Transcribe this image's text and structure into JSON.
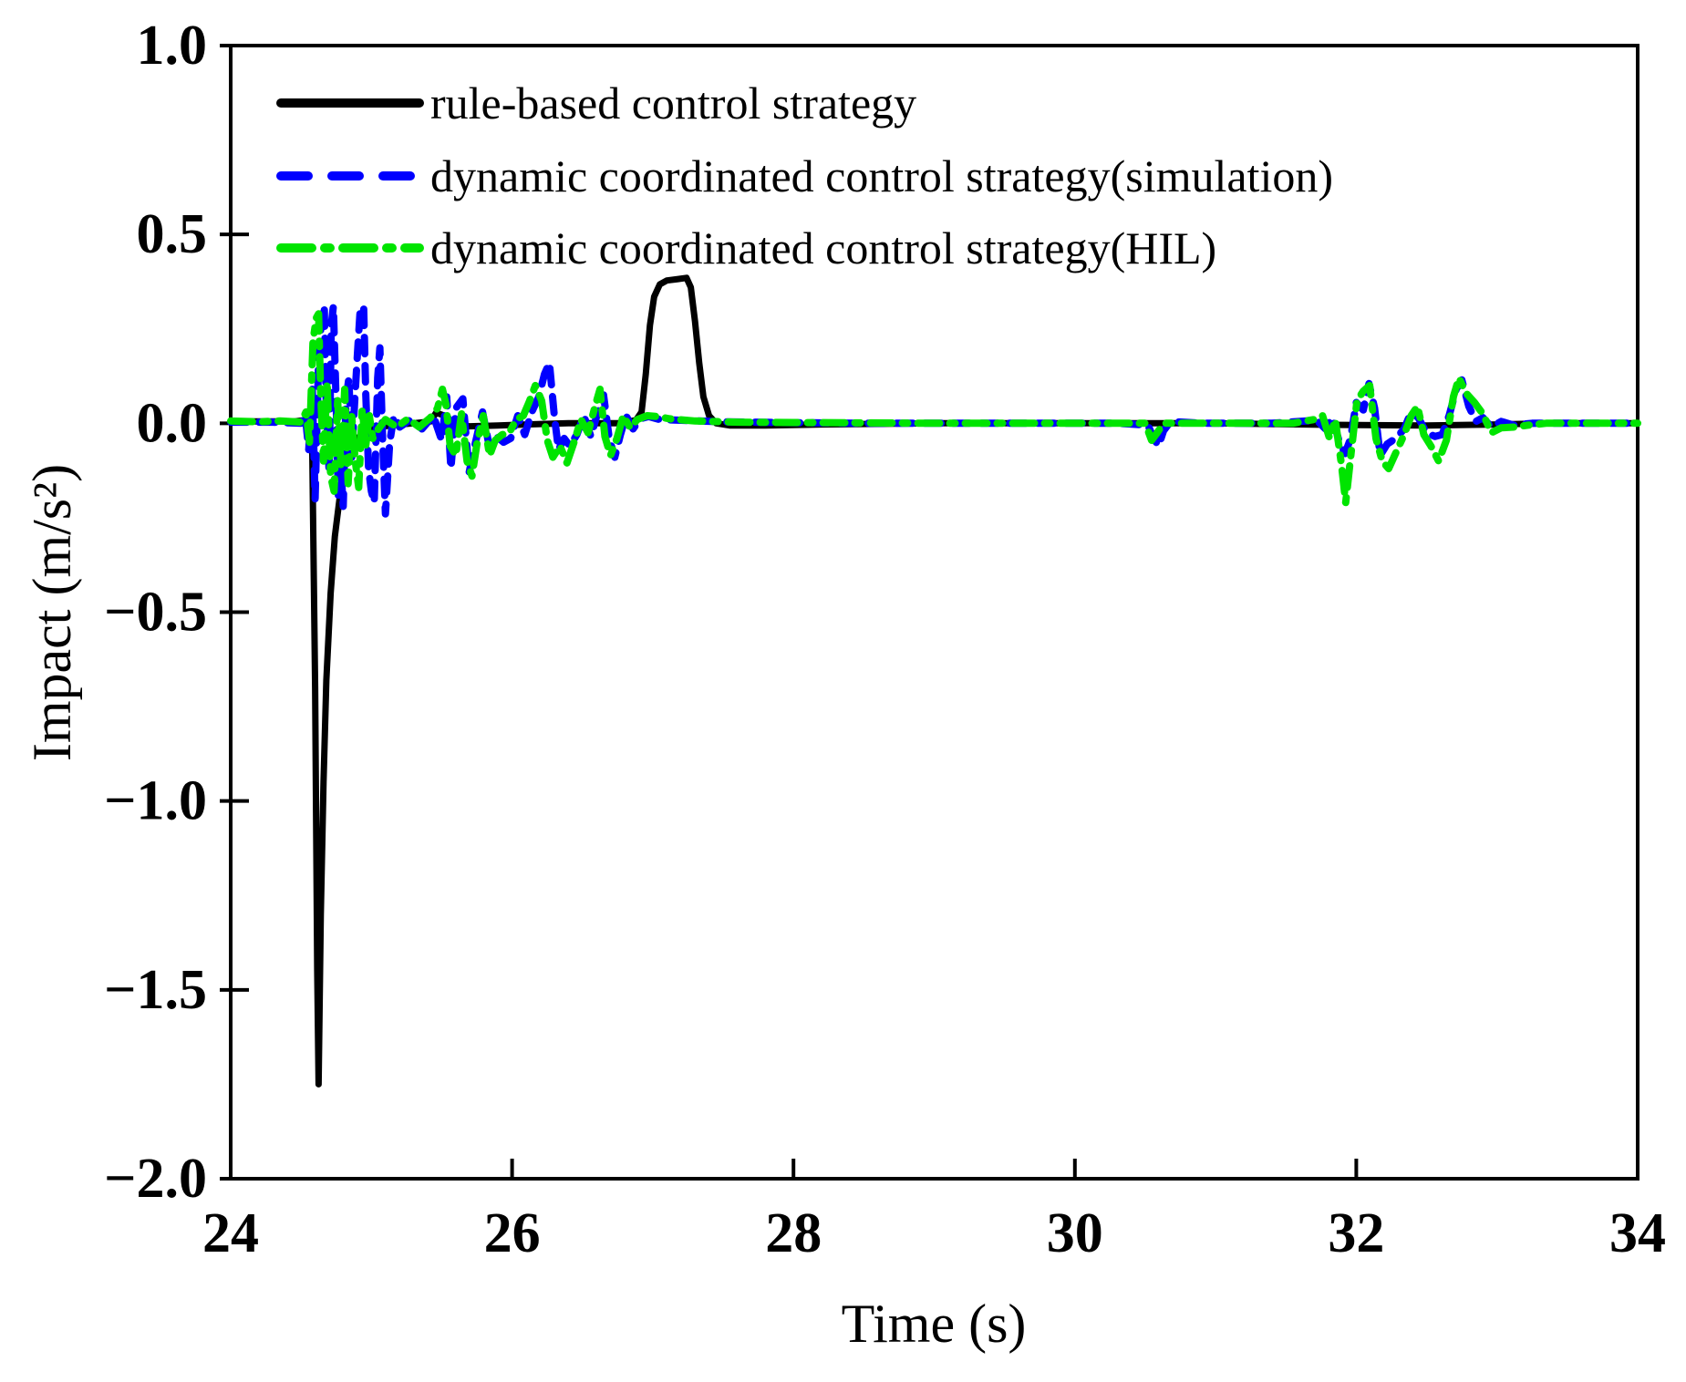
{
  "figure": {
    "background": "#ffffff"
  },
  "chart_data": {
    "type": "line",
    "title": "",
    "xlabel": "Time (s)",
    "ylabel": "Impact (m/s²)",
    "xlim": [
      24,
      34
    ],
    "ylim": [
      -2.0,
      1.0
    ],
    "grid": false,
    "legend_position": "upper-left-inside",
    "x_tick_labels": [
      "24",
      "26",
      "28",
      "30",
      "32",
      "34"
    ],
    "x_tick_values": [
      24,
      26,
      28,
      30,
      32,
      34
    ],
    "x_tick_marks": [
      26,
      28,
      30,
      32
    ],
    "y_tick_labels": [
      "1.0",
      "0.5",
      "0.0",
      "−0.5",
      "−1.0",
      "−1.5",
      "−2.0"
    ],
    "y_tick_values": [
      1.0,
      0.5,
      0.0,
      -0.5,
      -1.0,
      -1.5,
      -2.0
    ],
    "series": [
      {
        "name": "rule-based control strategy",
        "color": "#000000",
        "style": "solid",
        "width": 7,
        "dash": [],
        "legend_dash": [],
        "points": [
          [
            24,
            0.005
          ],
          [
            24.45,
            0.005
          ],
          [
            24.52,
            0.008
          ],
          [
            24.56,
            0
          ],
          [
            24.58,
            -0.08
          ],
          [
            24.6,
            -0.7
          ],
          [
            24.615,
            -1.45
          ],
          [
            24.625,
            -1.75
          ],
          [
            24.64,
            -1.3
          ],
          [
            24.66,
            -0.95
          ],
          [
            24.68,
            -0.68
          ],
          [
            24.71,
            -0.45
          ],
          [
            24.74,
            -0.3
          ],
          [
            24.78,
            -0.18
          ],
          [
            24.82,
            -0.09
          ],
          [
            24.88,
            -0.05
          ],
          [
            24.94,
            -0.025
          ],
          [
            25.02,
            -0.012
          ],
          [
            25.15,
            -0.005
          ],
          [
            25.3,
            0
          ],
          [
            25.42,
            0.005
          ],
          [
            25.46,
            0.028
          ],
          [
            25.52,
            0.02
          ],
          [
            25.56,
            -0.005
          ],
          [
            25.7,
            -0.008
          ],
          [
            25.9,
            -0.006
          ],
          [
            26.1,
            -0.003
          ],
          [
            26.4,
            0
          ],
          [
            26.75,
            0
          ],
          [
            26.88,
            0.008
          ],
          [
            26.92,
            0.03
          ],
          [
            26.95,
            0.13
          ],
          [
            26.98,
            0.26
          ],
          [
            27.01,
            0.335
          ],
          [
            27.05,
            0.368
          ],
          [
            27.1,
            0.378
          ],
          [
            27.18,
            0.382
          ],
          [
            27.24,
            0.385
          ],
          [
            27.27,
            0.36
          ],
          [
            27.3,
            0.27
          ],
          [
            27.33,
            0.16
          ],
          [
            27.36,
            0.07
          ],
          [
            27.4,
            0.02
          ],
          [
            27.45,
            0
          ],
          [
            27.55,
            -0.006
          ],
          [
            27.8,
            -0.006
          ],
          [
            28.2,
            -0.003
          ],
          [
            29,
            0
          ],
          [
            30,
            0
          ],
          [
            31,
            0
          ],
          [
            31.8,
            -0.004
          ],
          [
            32.5,
            -0.006
          ],
          [
            33,
            -0.003
          ],
          [
            33.4,
            0
          ],
          [
            34,
            0
          ]
        ]
      },
      {
        "name": "dynamic coordinated control strategy(simulation)",
        "color": "#0000FF",
        "style": "dashed",
        "width": 8,
        "dash": [
          18,
          13
        ],
        "legend_dash": [
          30,
          26
        ],
        "points": [
          [
            24,
            0.003
          ],
          [
            24.3,
            0.003
          ],
          [
            24.5,
            0
          ],
          [
            24.53,
            0.02
          ],
          [
            24.555,
            -0.07
          ],
          [
            24.58,
            0.09
          ],
          [
            24.6,
            -0.2
          ],
          [
            24.625,
            0.17
          ],
          [
            24.65,
            0.3
          ],
          [
            24.665,
            0.31
          ],
          [
            24.68,
            0.04
          ],
          [
            24.7,
            -0.13
          ],
          [
            24.715,
            0.26
          ],
          [
            24.73,
            0.31
          ],
          [
            24.75,
            0.05
          ],
          [
            24.765,
            -0.19
          ],
          [
            24.78,
            -0.1
          ],
          [
            24.8,
            -0.22
          ],
          [
            24.82,
            0.06
          ],
          [
            24.84,
            0.12
          ],
          [
            24.86,
            -0.09
          ],
          [
            24.88,
            0.05
          ],
          [
            24.9,
            0.18
          ],
          [
            24.92,
            0.3
          ],
          [
            24.945,
            0.31
          ],
          [
            24.96,
            0.08
          ],
          [
            24.98,
            -0.12
          ],
          [
            25,
            -0.18
          ],
          [
            25.02,
            -0.21
          ],
          [
            25.045,
            0.12
          ],
          [
            25.06,
            0.2
          ],
          [
            25.08,
            -0.04
          ],
          [
            25.1,
            -0.24
          ],
          [
            25.13,
            -0.05
          ],
          [
            25.16,
            0.02
          ],
          [
            25.2,
            -0.01
          ],
          [
            25.28,
            0.01
          ],
          [
            25.36,
            -0.015
          ],
          [
            25.44,
            0.02
          ],
          [
            25.5,
            -0.045
          ],
          [
            25.535,
            0.07
          ],
          [
            25.565,
            -0.12
          ],
          [
            25.6,
            0.04
          ],
          [
            25.65,
            0.065
          ],
          [
            25.695,
            -0.13
          ],
          [
            25.74,
            -0.05
          ],
          [
            25.79,
            0.03
          ],
          [
            25.84,
            -0.065
          ],
          [
            25.89,
            -0.035
          ],
          [
            25.94,
            -0.05
          ],
          [
            25.99,
            -0.04
          ],
          [
            26.04,
            0.02
          ],
          [
            26.09,
            -0.03
          ],
          [
            26.14,
            0.03
          ],
          [
            26.19,
            0.07
          ],
          [
            26.23,
            0.13
          ],
          [
            26.265,
            0.16
          ],
          [
            26.3,
            0.02
          ],
          [
            26.33,
            -0.07
          ],
          [
            26.37,
            -0.04
          ],
          [
            26.41,
            -0.06
          ],
          [
            26.46,
            -0.03
          ],
          [
            26.51,
            0.02
          ],
          [
            26.56,
            -0.035
          ],
          [
            26.61,
            0.03
          ],
          [
            26.65,
            0.075
          ],
          [
            26.69,
            -0.04
          ],
          [
            26.73,
            -0.09
          ],
          [
            26.77,
            -0.03
          ],
          [
            26.81,
            0.02
          ],
          [
            26.86,
            -0.015
          ],
          [
            26.91,
            0.012
          ],
          [
            26.97,
            0.018
          ],
          [
            27.05,
            0.01
          ],
          [
            27.2,
            0.008
          ],
          [
            27.5,
            0.004
          ],
          [
            27.9,
            0.002
          ],
          [
            28.5,
            0
          ],
          [
            29.5,
            0
          ],
          [
            30.3,
            0
          ],
          [
            30.52,
            -0.005
          ],
          [
            30.56,
            -0.04
          ],
          [
            30.595,
            -0.06
          ],
          [
            30.63,
            -0.02
          ],
          [
            30.68,
            0.005
          ],
          [
            30.9,
            0
          ],
          [
            31.4,
            0
          ],
          [
            31.72,
            0.008
          ],
          [
            31.78,
            -0.015
          ],
          [
            31.83,
            0.015
          ],
          [
            31.88,
            -0.05
          ],
          [
            31.92,
            -0.08
          ],
          [
            31.96,
            -0.04
          ],
          [
            32,
            0.055
          ],
          [
            32.05,
            0.035
          ],
          [
            32.09,
            0.105
          ],
          [
            32.13,
            0.04
          ],
          [
            32.17,
            -0.085
          ],
          [
            32.22,
            -0.055
          ],
          [
            32.28,
            -0.04
          ],
          [
            32.34,
            -0.015
          ],
          [
            32.39,
            0.03
          ],
          [
            32.44,
            0.015
          ],
          [
            32.5,
            -0.025
          ],
          [
            32.56,
            -0.035
          ],
          [
            32.61,
            -0.03
          ],
          [
            32.66,
            0.02
          ],
          [
            32.71,
            0.09
          ],
          [
            32.75,
            0.115
          ],
          [
            32.8,
            0.045
          ],
          [
            32.85,
            0.005
          ],
          [
            32.9,
            0.015
          ],
          [
            32.96,
            -0.01
          ],
          [
            33.03,
            0.005
          ],
          [
            33.12,
            -0.005
          ],
          [
            33.25,
            0
          ],
          [
            34,
            0
          ]
        ]
      },
      {
        "name": "dynamic coordinated control strategy(HIL)",
        "color": "#00E400",
        "style": "dashdot",
        "width": 8,
        "dash": [
          24,
          11,
          6,
          11
        ],
        "legend_dash": [
          34,
          14,
          6,
          14
        ],
        "points": [
          [
            24,
            0.006
          ],
          [
            24.2,
            0.004
          ],
          [
            24.35,
            0.006
          ],
          [
            24.5,
            0.003
          ],
          [
            24.535,
            0.03
          ],
          [
            24.56,
            -0.05
          ],
          [
            24.585,
            0.22
          ],
          [
            24.61,
            0.28
          ],
          [
            24.625,
            0.29
          ],
          [
            24.64,
            0.07
          ],
          [
            24.66,
            -0.1
          ],
          [
            24.685,
            0.11
          ],
          [
            24.71,
            -0.14
          ],
          [
            24.735,
            -0.18
          ],
          [
            24.76,
            0.06
          ],
          [
            24.785,
            -0.12
          ],
          [
            24.81,
            0.09
          ],
          [
            24.835,
            -0.16
          ],
          [
            24.86,
            0.02
          ],
          [
            24.885,
            -0.1
          ],
          [
            24.91,
            -0.17
          ],
          [
            24.935,
            0.04
          ],
          [
            24.96,
            -0.06
          ],
          [
            24.985,
            0.02
          ],
          [
            25.01,
            -0.04
          ],
          [
            25.05,
            -0.015
          ],
          [
            25.1,
            0.01
          ],
          [
            25.18,
            -0.01
          ],
          [
            25.26,
            0.012
          ],
          [
            25.34,
            -0.01
          ],
          [
            25.42,
            0.015
          ],
          [
            25.47,
            0.04
          ],
          [
            25.505,
            0.09
          ],
          [
            25.53,
            0.05
          ],
          [
            25.56,
            -0.06
          ],
          [
            25.6,
            -0.085
          ],
          [
            25.64,
            0.025
          ],
          [
            25.68,
            -0.1
          ],
          [
            25.715,
            -0.14
          ],
          [
            25.75,
            -0.055
          ],
          [
            25.795,
            0.02
          ],
          [
            25.84,
            -0.085
          ],
          [
            25.88,
            -0.045
          ],
          [
            25.93,
            -0.03
          ],
          [
            25.98,
            -0.025
          ],
          [
            26.03,
            0.01
          ],
          [
            26.08,
            0.02
          ],
          [
            26.12,
            0.055
          ],
          [
            26.165,
            0.1
          ],
          [
            26.21,
            0.06
          ],
          [
            26.25,
            -0.045
          ],
          [
            26.29,
            -0.09
          ],
          [
            26.34,
            -0.06
          ],
          [
            26.39,
            -0.105
          ],
          [
            26.44,
            -0.05
          ],
          [
            26.49,
            0.01
          ],
          [
            26.54,
            -0.025
          ],
          [
            26.59,
            0.045
          ],
          [
            26.625,
            0.09
          ],
          [
            26.66,
            -0.035
          ],
          [
            26.7,
            -0.085
          ],
          [
            26.745,
            -0.04
          ],
          [
            26.79,
            0.02
          ],
          [
            26.84,
            -0.012
          ],
          [
            26.89,
            0.01
          ],
          [
            26.96,
            0.02
          ],
          [
            27.03,
            0.018
          ],
          [
            27.12,
            0.012
          ],
          [
            27.3,
            0.006
          ],
          [
            27.6,
            0.003
          ],
          [
            28,
            0.002
          ],
          [
            29,
            0
          ],
          [
            30,
            0
          ],
          [
            30.5,
            0
          ],
          [
            30.545,
            -0.045
          ],
          [
            30.585,
            -0.025
          ],
          [
            30.63,
            0
          ],
          [
            31,
            0
          ],
          [
            31.55,
            0
          ],
          [
            31.7,
            0.01
          ],
          [
            31.76,
            0.02
          ],
          [
            31.81,
            -0.04
          ],
          [
            31.85,
            0.01
          ],
          [
            31.895,
            -0.11
          ],
          [
            31.925,
            -0.21
          ],
          [
            31.96,
            -0.09
          ],
          [
            32.005,
            0.06
          ],
          [
            32.05,
            0.085
          ],
          [
            32.095,
            0.1
          ],
          [
            32.14,
            -0.04
          ],
          [
            32.185,
            -0.1
          ],
          [
            32.23,
            -0.12
          ],
          [
            32.285,
            -0.075
          ],
          [
            32.34,
            -0.03
          ],
          [
            32.39,
            0.02
          ],
          [
            32.435,
            0.045
          ],
          [
            32.48,
            -0.03
          ],
          [
            32.53,
            -0.06
          ],
          [
            32.585,
            -0.1
          ],
          [
            32.64,
            -0.045
          ],
          [
            32.69,
            0.07
          ],
          [
            32.73,
            0.12
          ],
          [
            32.78,
            0.08
          ],
          [
            32.84,
            0.055
          ],
          [
            32.9,
            0.025
          ],
          [
            32.96,
            -0.025
          ],
          [
            33.03,
            -0.012
          ],
          [
            33.12,
            -0.01
          ],
          [
            33.22,
            -0.005
          ],
          [
            33.35,
            0
          ],
          [
            34,
            0
          ]
        ]
      }
    ]
  }
}
